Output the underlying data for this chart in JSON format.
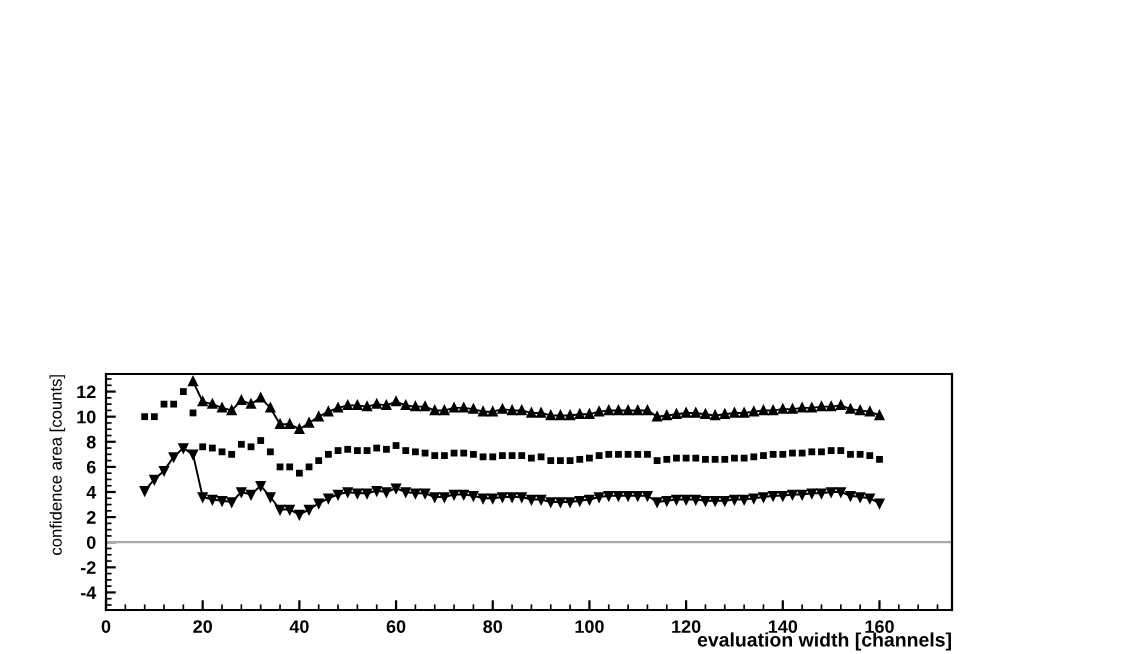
{
  "chart_data": {
    "type": "line",
    "xlabel": "evaluation width [channels]",
    "ylabel": "confidence area [counts]",
    "xlim": [
      0,
      175
    ],
    "ylim": [
      -5.4,
      13.4
    ],
    "xticks": [
      0,
      20,
      40,
      60,
      80,
      100,
      120,
      140,
      160
    ],
    "yticks": [
      -4,
      -2,
      0,
      2,
      4,
      6,
      8,
      10,
      12
    ],
    "grid": false,
    "legend": false,
    "line_style": "solid",
    "ref_lines": [
      {
        "axis": "y",
        "value": 0,
        "color": "#aaaaaa"
      }
    ],
    "series": [
      {
        "color": "#000000",
        "marker": "triangle",
        "x": [
          18,
          20,
          22,
          24,
          26,
          28,
          30,
          32,
          34,
          36,
          38,
          40,
          42,
          44,
          46,
          48,
          50,
          52,
          54,
          56,
          58,
          60,
          62,
          64,
          66,
          68,
          70,
          72,
          74,
          76,
          78,
          80,
          82,
          84,
          86,
          88,
          90,
          92,
          94,
          96,
          98,
          100,
          102,
          104,
          106,
          108,
          110,
          112,
          114,
          116,
          118,
          120,
          122,
          124,
          126,
          128,
          130,
          132,
          134,
          136,
          138,
          140,
          142,
          144,
          146,
          148,
          150,
          152,
          154,
          156,
          158,
          160
        ],
        "values": [
          12.8,
          11.2,
          11,
          10.7,
          10.5,
          11.3,
          11,
          11.5,
          10.7,
          9.4,
          9.4,
          9.0,
          9.5,
          10,
          10.4,
          10.7,
          10.9,
          10.9,
          10.8,
          11,
          10.9,
          11.2,
          10.9,
          10.8,
          10.8,
          10.5,
          10.5,
          10.7,
          10.7,
          10.6,
          10.4,
          10.4,
          10.6,
          10.5,
          10.5,
          10.3,
          10.3,
          10.1,
          10.1,
          10.1,
          10.2,
          10.2,
          10.4,
          10.5,
          10.5,
          10.5,
          10.5,
          10.5,
          10.0,
          10.1,
          10.2,
          10.3,
          10.3,
          10.2,
          10.1,
          10.2,
          10.3,
          10.3,
          10.4,
          10.5,
          10.5,
          10.6,
          10.6,
          10.7,
          10.7,
          10.8,
          10.8,
          10.9,
          10.6,
          10.5,
          10.4,
          10.1
        ]
      },
      {
        "type": "scatter",
        "color": "#000000",
        "marker": "square",
        "x": [
          8,
          10,
          12,
          14,
          16,
          18,
          20,
          22,
          24,
          26,
          28,
          30,
          32,
          34,
          36,
          38,
          40,
          42,
          44,
          46,
          48,
          50,
          52,
          54,
          56,
          58,
          60,
          62,
          64,
          66,
          68,
          70,
          72,
          74,
          76,
          78,
          80,
          82,
          84,
          86,
          88,
          90,
          92,
          94,
          96,
          98,
          100,
          102,
          104,
          106,
          108,
          110,
          112,
          114,
          116,
          118,
          120,
          122,
          124,
          126,
          128,
          130,
          132,
          134,
          136,
          138,
          140,
          142,
          144,
          146,
          148,
          150,
          152,
          154,
          156,
          158,
          160
        ],
        "values": [
          10,
          10,
          11,
          11,
          12,
          10.3,
          7.6,
          7.5,
          7.2,
          7.0,
          7.8,
          7.6,
          8.1,
          7.2,
          6.0,
          6.0,
          5.5,
          6.0,
          6.5,
          7.0,
          7.3,
          7.4,
          7.3,
          7.3,
          7.5,
          7.4,
          7.7,
          7.3,
          7.2,
          7.1,
          6.9,
          6.9,
          7.1,
          7.1,
          7.0,
          6.8,
          6.8,
          6.9,
          6.9,
          6.9,
          6.7,
          6.8,
          6.5,
          6.5,
          6.5,
          6.6,
          6.7,
          6.9,
          7.0,
          7.0,
          7.0,
          7.0,
          7.0,
          6.5,
          6.6,
          6.7,
          6.7,
          6.7,
          6.6,
          6.6,
          6.6,
          6.7,
          6.7,
          6.8,
          6.9,
          7.0,
          7.0,
          7.1,
          7.1,
          7.2,
          7.2,
          7.3,
          7.3,
          7.0,
          7.0,
          6.9,
          6.6
        ]
      },
      {
        "color": "#000000",
        "marker": "triangle_down",
        "x": [
          8,
          10,
          12,
          14,
          16,
          18,
          20,
          22,
          24,
          26,
          28,
          30,
          32,
          34,
          36,
          38,
          40,
          42,
          44,
          46,
          48,
          50,
          52,
          54,
          56,
          58,
          60,
          62,
          64,
          66,
          68,
          70,
          72,
          74,
          76,
          78,
          80,
          82,
          84,
          86,
          88,
          90,
          92,
          94,
          96,
          98,
          100,
          102,
          104,
          106,
          108,
          110,
          112,
          114,
          116,
          118,
          120,
          122,
          124,
          126,
          128,
          130,
          132,
          134,
          136,
          138,
          140,
          142,
          144,
          146,
          148,
          150,
          152,
          154,
          156,
          158,
          160
        ],
        "values": [
          4.1,
          5.0,
          5.7,
          6.8,
          7.5,
          7.0,
          3.6,
          3.4,
          3.3,
          3.2,
          4.0,
          3.8,
          4.5,
          3.6,
          2.6,
          2.6,
          2.2,
          2.6,
          3.1,
          3.5,
          3.8,
          4.0,
          3.9,
          3.9,
          4.1,
          4.0,
          4.3,
          4.0,
          3.9,
          3.9,
          3.6,
          3.6,
          3.8,
          3.8,
          3.7,
          3.5,
          3.5,
          3.6,
          3.6,
          3.6,
          3.4,
          3.4,
          3.2,
          3.2,
          3.2,
          3.3,
          3.4,
          3.6,
          3.7,
          3.7,
          3.7,
          3.7,
          3.7,
          3.2,
          3.3,
          3.4,
          3.4,
          3.4,
          3.3,
          3.3,
          3.3,
          3.4,
          3.4,
          3.5,
          3.6,
          3.7,
          3.7,
          3.8,
          3.8,
          3.9,
          3.9,
          4.0,
          4.0,
          3.7,
          3.6,
          3.5,
          3.1
        ]
      }
    ]
  }
}
